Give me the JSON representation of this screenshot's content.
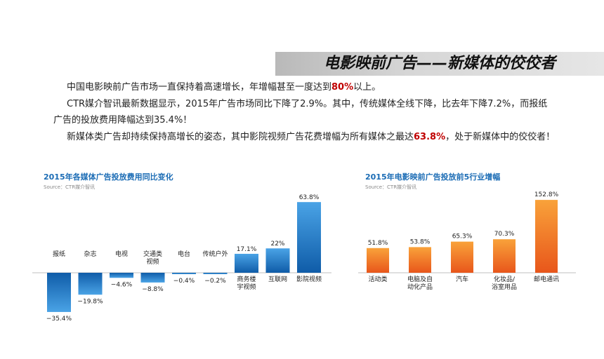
{
  "banner": {
    "title": "电影映前广告——新媒体的佼佼者"
  },
  "paragraphs": {
    "p1": {
      "pre": "中国电影映前广告市场一直保持着高速增长，年增幅甚至一度达到",
      "hl": "80%",
      "post": "以上。"
    },
    "p2": "CTR媒介智讯最新数据显示，2015年广告市场同比下降了2.9%。其中，传统媒体全线下降，比去年下降7.2%，而报纸",
    "p2b": "广告的投放费用降幅达到35.4%！",
    "p3": {
      "pre": "新媒体类广告却持续保持高增长的姿态，其中影院视频广告花费增幅为所有媒体之最达",
      "hl": "63.8%",
      "post": "，处于新媒体中的佼佼者！"
    }
  },
  "chart_data": [
    {
      "type": "bar",
      "title": "2015年各媒体广告投放费用同比变化",
      "source": "Source：CTR媒介智讯",
      "categories": [
        "报纸",
        "杂志",
        "电视",
        "交通类视频",
        "电台",
        "传统户外",
        "商务楼宇视频",
        "互联网",
        "影院视频"
      ],
      "category_lines": [
        [
          "报纸"
        ],
        [
          "杂志"
        ],
        [
          "电视"
        ],
        [
          "交通类",
          "视频"
        ],
        [
          "电台"
        ],
        [
          "传统户外"
        ],
        [
          "商务楼",
          "宇视频"
        ],
        [
          "互联网"
        ],
        [
          "影院视频"
        ]
      ],
      "values": [
        -35.4,
        -19.8,
        -4.6,
        -8.8,
        -0.4,
        -0.2,
        17.1,
        22,
        63.8
      ],
      "value_labels": [
        "−35.4%",
        "−19.8%",
        "−4.6%",
        "−8.8%",
        "−0.4%",
        "−0.2%",
        "17.1%",
        "22%",
        "63.8%"
      ],
      "color": "#1a74c6"
    },
    {
      "type": "bar",
      "title": "2015年电影映前广告投放前5行业增幅",
      "source": "Source：CTR媒介智讯",
      "categories": [
        "活动类",
        "电脑及自动化产品",
        "汽车",
        "化妆品/浴室用品",
        "邮电通讯"
      ],
      "category_lines": [
        [
          "活动类"
        ],
        [
          "电脑及自",
          "动化产品"
        ],
        [
          "汽车"
        ],
        [
          "化妆品/",
          "浴室用品"
        ],
        [
          "邮电通讯"
        ]
      ],
      "values": [
        51.8,
        53.8,
        65.3,
        70.3,
        152.8
      ],
      "value_labels": [
        "51.8%",
        "53.8%",
        "65.3%",
        "70.3%",
        "152.8%"
      ],
      "color": "#f07a1e"
    }
  ]
}
